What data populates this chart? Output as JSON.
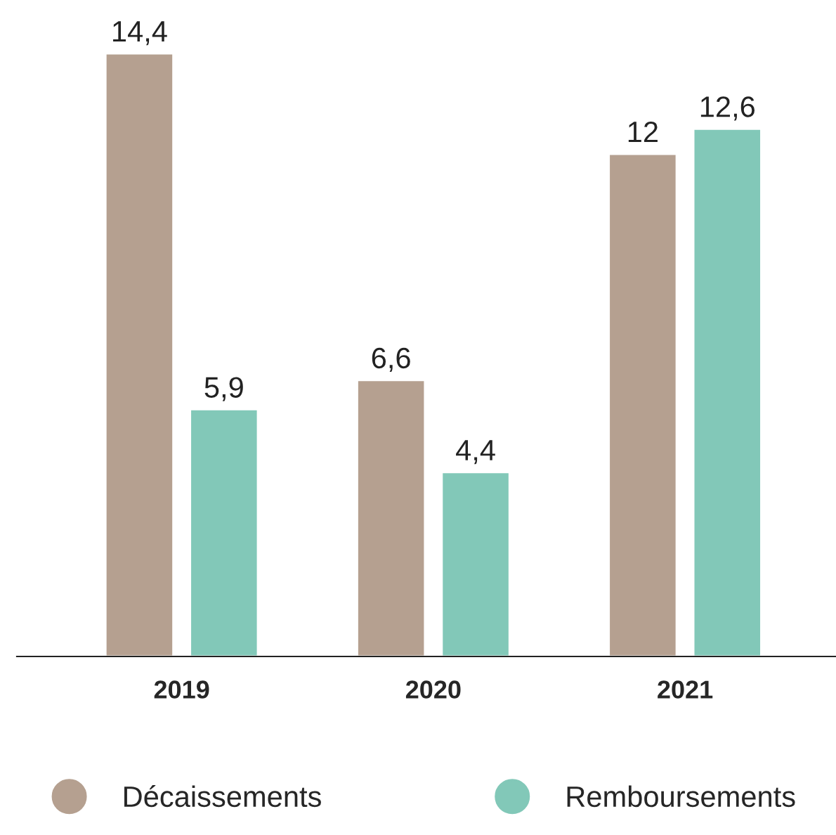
{
  "chart_data": {
    "type": "bar",
    "categories": [
      "2019",
      "2020",
      "2021"
    ],
    "series": [
      {
        "name": "Décaissements",
        "color": "#b5a090",
        "values": [
          14.4,
          6.6,
          12
        ],
        "value_labels": [
          "14,4",
          "6,6",
          "12"
        ]
      },
      {
        "name": "Remboursements",
        "color": "#82c8b8",
        "values": [
          5.9,
          4.4,
          12.6
        ],
        "value_labels": [
          "5,9",
          "4,4",
          "12,6"
        ]
      }
    ],
    "legend": "bottom",
    "grid": false,
    "tick_labels": "x"
  }
}
